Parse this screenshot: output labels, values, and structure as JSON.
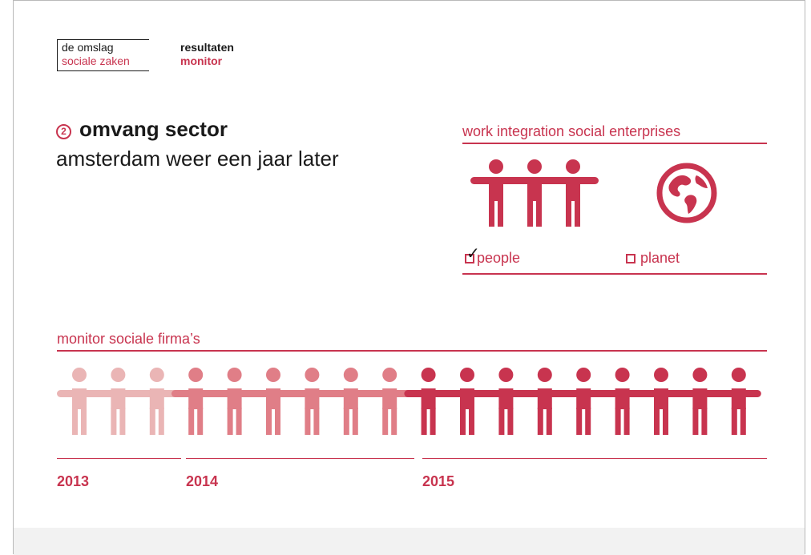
{
  "header": {
    "logo": {
      "line1": "de omslag",
      "line2": "sociale zaken"
    },
    "report": {
      "line1": "resultaten",
      "line2": "monitor"
    }
  },
  "title": {
    "number": "2",
    "main": "omvang sector",
    "sub": "amsterdam weer een jaar later"
  },
  "wise": {
    "heading": "work integration social enterprises",
    "options": [
      {
        "label": "people",
        "checked": true,
        "icon": "people-icon"
      },
      {
        "label": "planet",
        "checked": false,
        "icon": "globe-icon"
      }
    ]
  },
  "monitor": {
    "heading": "monitor sociale firma’s",
    "years": [
      {
        "label": "2013",
        "count": 3,
        "color": "#eab5b5"
      },
      {
        "label": "2014",
        "count": 6,
        "color": "#e07e87"
      },
      {
        "label": "2015",
        "count": 9,
        "color": "#c8344f"
      }
    ]
  },
  "colors": {
    "accent": "#c8344f",
    "text": "#1a1a1a"
  }
}
